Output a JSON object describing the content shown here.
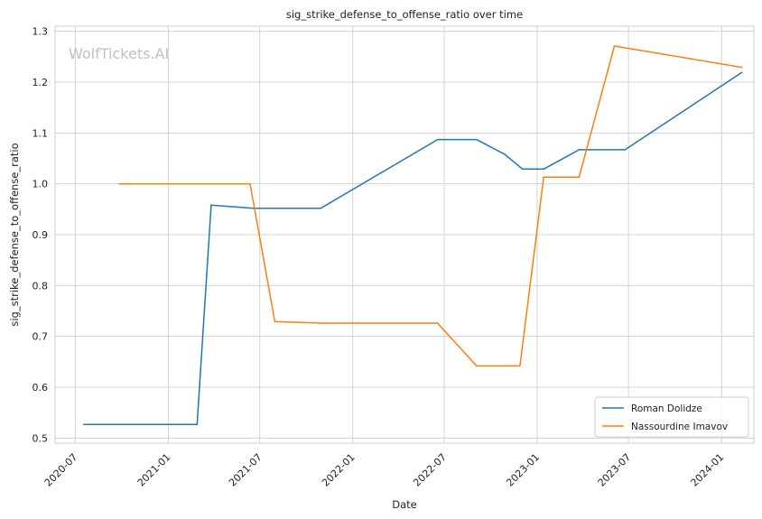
{
  "watermark": "WolfTickets.AI",
  "chart_data": {
    "type": "line",
    "title": "sig_strike_defense_to_offense_ratio over time",
    "xlabel": "Date",
    "ylabel": "sig_strike_defense_to_offense_ratio",
    "x_ticks": [
      "2020-07",
      "2021-01",
      "2021-07",
      "2022-01",
      "2022-07",
      "2023-01",
      "2023-07",
      "2024-01"
    ],
    "y_ticks": [
      0.5,
      0.6,
      0.7,
      0.8,
      0.9,
      1.0,
      1.1,
      1.2,
      1.3
    ],
    "xlim": [
      "2020-05-22",
      "2024-03-05"
    ],
    "ylim": [
      0.49,
      1.31
    ],
    "grid": true,
    "legend_position": "bottom-right",
    "series": [
      {
        "name": "Roman Dolidze",
        "color": "#1f77b4",
        "points": [
          [
            "2020-07-18",
            0.527
          ],
          [
            "2021-02-27",
            0.527
          ],
          [
            "2021-03-27",
            0.958
          ],
          [
            "2021-06-19",
            0.952
          ],
          [
            "2021-10-30",
            0.952
          ],
          [
            "2022-06-18",
            1.087
          ],
          [
            "2022-09-03",
            1.087
          ],
          [
            "2022-10-29",
            1.058
          ],
          [
            "2022-12-03",
            1.029
          ],
          [
            "2023-01-14",
            1.029
          ],
          [
            "2023-03-25",
            1.067
          ],
          [
            "2023-06-24",
            1.067
          ],
          [
            "2024-02-10",
            1.219
          ]
        ]
      },
      {
        "name": "Nassourdine Imavov",
        "color": "#ff7f0e",
        "points": [
          [
            "2020-09-26",
            1.0
          ],
          [
            "2021-06-12",
            1.0
          ],
          [
            "2021-07-31",
            0.729
          ],
          [
            "2021-10-30",
            0.726
          ],
          [
            "2022-06-18",
            0.726
          ],
          [
            "2022-09-03",
            0.642
          ],
          [
            "2022-11-28",
            0.642
          ],
          [
            "2023-01-14",
            1.013
          ],
          [
            "2023-03-25",
            1.013
          ],
          [
            "2023-06-03",
            1.271
          ],
          [
            "2024-02-10",
            1.229
          ]
        ]
      }
    ]
  }
}
